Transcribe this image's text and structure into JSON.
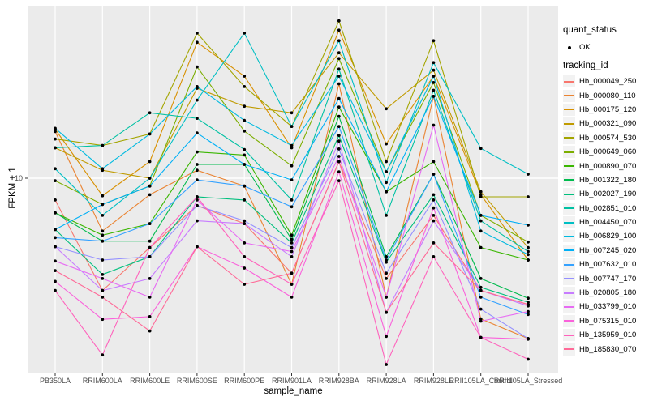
{
  "chart_data": {
    "type": "line",
    "title": "",
    "xlabel": "sample_name",
    "ylabel": "FPKM + 1",
    "y_scale": "log10",
    "y_ticks": [
      10
    ],
    "y_tick_labels": [
      "10"
    ],
    "ylim_plotted": [
      1,
      80
    ],
    "grid": "major-only",
    "panel_bg": "#EBEBEB",
    "grid_color": "#FFFFFF",
    "point_color": "#000000",
    "axis_text_color": "#4D4D4D",
    "legend_position": "right",
    "categories": [
      "PB350LA",
      "RRIM600LA",
      "RRIM600LE",
      "RRIM600SE",
      "RRIM600PE",
      "RRIM901LA",
      "RRIM928BA",
      "RRIM928LA",
      "RRIM928LE",
      "RRII105LA_Control",
      "RRII105LA_Stressed"
    ],
    "series": [
      {
        "name": "Hb_000049_250",
        "color": "#F8766D",
        "values": [
          7.7,
          2.6,
          4.35,
          7.2,
          5.8,
          3.2,
          12.2,
          3.0,
          6.4,
          2.6,
          2.2
        ]
      },
      {
        "name": "Hb_000080_110",
        "color": "#EA8331",
        "values": [
          17.5,
          5.3,
          8.2,
          11,
          9.1,
          2.8,
          31,
          2.4,
          26.7,
          1.85,
          1.46
        ]
      },
      {
        "name": "Hb_000175_120",
        "color": "#D89000",
        "values": [
          18,
          8.1,
          12.2,
          51,
          34,
          14.4,
          59,
          15.1,
          34,
          8.2,
          3.75
        ]
      },
      {
        "name": "Hb_000321_090",
        "color": "#C09B00",
        "values": [
          14.4,
          11,
          10,
          29.4,
          23.7,
          21.9,
          45,
          23,
          36.5,
          8.5,
          4.35
        ]
      },
      {
        "name": "Hb_000574_530",
        "color": "#A3A500",
        "values": [
          16,
          14.8,
          17,
          57,
          30,
          18.6,
          66,
          12.2,
          52,
          8.0,
          8.0
        ]
      },
      {
        "name": "Hb_000649_060",
        "color": "#7CAE00",
        "values": [
          9.7,
          7.3,
          9.1,
          38,
          17.6,
          11.6,
          42,
          10.8,
          31.5,
          6.4,
          4.65
        ]
      },
      {
        "name": "Hb_000890_070",
        "color": "#39B600",
        "values": [
          6.6,
          5.05,
          5.8,
          13.7,
          13.2,
          5.05,
          23.5,
          8.5,
          12.2,
          4.35,
          3.75
        ]
      },
      {
        "name": "Hb_001322_180",
        "color": "#00BB4E",
        "values": [
          6.6,
          4.7,
          4.7,
          11.8,
          11.8,
          4.8,
          21,
          3.9,
          10.5,
          3.0,
          2.37
        ]
      },
      {
        "name": "Hb_002027_190",
        "color": "#00BF7D",
        "values": [
          5.4,
          3.15,
          3.9,
          8.0,
          7.7,
          4.6,
          16.7,
          3.65,
          8.2,
          2.7,
          2.26
        ]
      },
      {
        "name": "Hb_002851_010",
        "color": "#00C1A3",
        "values": [
          14.4,
          14.8,
          21.9,
          20.5,
          14.1,
          7.7,
          37,
          6.4,
          28.7,
          6.0,
          4.15
        ]
      },
      {
        "name": "Hb_004450_070",
        "color": "#00BFC4",
        "values": [
          11.2,
          6.4,
          10,
          25.5,
          57,
          18.6,
          52,
          9.5,
          40,
          14.3,
          10.5
        ]
      },
      {
        "name": "Hb_006829_100",
        "color": "#00BAE0",
        "values": [
          18.2,
          11.2,
          17,
          30,
          20,
          14.8,
          34,
          10.8,
          34,
          5.3,
          4.0
        ]
      },
      {
        "name": "Hb_007245_020",
        "color": "#00B0F6",
        "values": [
          5.4,
          7.3,
          9.1,
          17.2,
          11.8,
          9.8,
          26,
          8.5,
          26.7,
          6.4,
          5.7
        ]
      },
      {
        "name": "Hb_007632_010",
        "color": "#35A2FF",
        "values": [
          4.9,
          4.7,
          5.8,
          9.8,
          9.1,
          7.1,
          18.6,
          3.75,
          10.5,
          2.4,
          1.95
        ]
      },
      {
        "name": "Hb_007747_170",
        "color": "#9590FF",
        "values": [
          4.4,
          3.75,
          3.9,
          7.2,
          6.0,
          4.35,
          14.2,
          3.2,
          7.7,
          2.08,
          1.46
        ]
      },
      {
        "name": "Hb_020805_180",
        "color": "#C77CFF",
        "values": [
          4.4,
          2.6,
          3.0,
          6.0,
          5.8,
          3.9,
          15.6,
          2.0,
          6.0,
          2.6,
          2.16
        ]
      },
      {
        "name": "Hb_033799_010",
        "color": "#E76BF3",
        "values": [
          3.7,
          3.0,
          2.4,
          7.7,
          4.6,
          4.15,
          13.0,
          2.4,
          18.9,
          1.8,
          2.02
        ]
      },
      {
        "name": "Hb_075315_010",
        "color": "#FA62DB",
        "values": [
          2.9,
          1.84,
          1.9,
          4.4,
          3.4,
          2.4,
          10.8,
          1.5,
          7.0,
          1.48,
          1.45
        ]
      },
      {
        "name": "Hb_135959_010",
        "color": "#FF62BC",
        "values": [
          2.6,
          1.2,
          4.35,
          8.0,
          3.9,
          2.8,
          9.7,
          1.07,
          3.9,
          1.48,
          1.14
        ]
      },
      {
        "name": "Hb_185830_070",
        "color": "#FF6A98",
        "values": [
          3.3,
          2.4,
          1.6,
          4.4,
          2.8,
          3.2,
          12.2,
          2.0,
          4.6,
          2.6,
          2.2
        ]
      }
    ]
  },
  "legend": {
    "quant_status_title": "quant_status",
    "quant_status_items": [
      {
        "label": "OK",
        "symbol": "point"
      }
    ],
    "tracking_title": "tracking_id"
  },
  "axes": {
    "x_title": "sample_name",
    "y_title": "FPKM + 1"
  }
}
